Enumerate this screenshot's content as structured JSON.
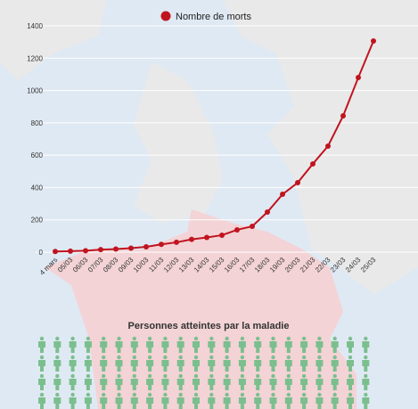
{
  "chart_data": {
    "type": "line",
    "legend": "Nombre de morts",
    "subtitle": "Personnes atteintes par la maladie",
    "categories": [
      "4 mars",
      "05/03",
      "06/03",
      "07/03",
      "08/03",
      "09/03",
      "10/03",
      "11/03",
      "12/03",
      "13/03",
      "14/03",
      "15/03",
      "16/03",
      "17/03",
      "18/03",
      "19/03",
      "20/03",
      "21/03",
      "22/03",
      "23/03",
      "24/03",
      "25/03"
    ],
    "series": [
      {
        "name": "Nombre de morts",
        "color": "#c0141f",
        "values": [
          4,
          6,
          9,
          16,
          19,
          25,
          33,
          48,
          61,
          79,
          91,
          105,
          138,
          160,
          248,
          358,
          430,
          546,
          656,
          843,
          1080,
          1306
        ]
      }
    ],
    "ylim": [
      0,
      1400
    ],
    "yticks": [
      0,
      200,
      400,
      600,
      800,
      1000,
      1200,
      1400
    ],
    "grid": true
  }
}
